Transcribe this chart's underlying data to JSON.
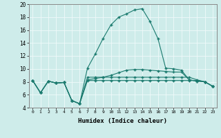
{
  "xlabel": "Humidex (Indice chaleur)",
  "xlim": [
    -0.5,
    23.5
  ],
  "ylim": [
    4,
    20
  ],
  "yticks": [
    4,
    6,
    8,
    10,
    12,
    14,
    16,
    18,
    20
  ],
  "xticks": [
    0,
    1,
    2,
    3,
    4,
    5,
    6,
    7,
    8,
    9,
    10,
    11,
    12,
    13,
    14,
    15,
    16,
    17,
    18,
    19,
    20,
    21,
    22,
    23
  ],
  "background_color": "#ceecea",
  "grid_color": "#f0fafa",
  "line_color": "#1a7a6e",
  "lines": [
    {
      "x": [
        0,
        1,
        2,
        3,
        4,
        5,
        6,
        7,
        8,
        9,
        10,
        11,
        12,
        13,
        14,
        15,
        16,
        17,
        18,
        19,
        20,
        21,
        22,
        23
      ],
      "y": [
        8.2,
        6.3,
        8.1,
        7.8,
        7.9,
        5.1,
        4.6,
        10.1,
        12.3,
        14.7,
        16.8,
        18.0,
        18.5,
        19.1,
        19.3,
        17.3,
        14.7,
        10.1,
        10.0,
        9.8,
        8.3,
        8.1,
        8.0,
        7.3
      ]
    },
    {
      "x": [
        0,
        1,
        2,
        3,
        4,
        5,
        6,
        7,
        8,
        9,
        10,
        11,
        12,
        13,
        14,
        15,
        16,
        17,
        18,
        19,
        20,
        21,
        22,
        23
      ],
      "y": [
        8.2,
        6.3,
        8.1,
        7.8,
        7.9,
        5.1,
        4.6,
        8.3,
        8.5,
        8.7,
        9.0,
        9.4,
        9.8,
        9.9,
        9.9,
        9.8,
        9.7,
        9.6,
        9.5,
        9.5,
        8.3,
        8.1,
        8.0,
        7.3
      ]
    },
    {
      "x": [
        0,
        1,
        2,
        3,
        4,
        5,
        6,
        7,
        8,
        9,
        10,
        11,
        12,
        13,
        14,
        15,
        16,
        17,
        18,
        19,
        20,
        21,
        22,
        23
      ],
      "y": [
        8.2,
        6.3,
        8.1,
        7.8,
        7.9,
        5.1,
        4.6,
        8.7,
        8.7,
        8.7,
        8.7,
        8.7,
        8.7,
        8.7,
        8.7,
        8.7,
        8.7,
        8.7,
        8.7,
        8.7,
        8.7,
        8.3,
        8.0,
        7.3
      ]
    },
    {
      "x": [
        0,
        1,
        2,
        3,
        4,
        5,
        6,
        7,
        8,
        9,
        10,
        11,
        12,
        13,
        14,
        15,
        16,
        17,
        18,
        19,
        20,
        21,
        22,
        23
      ],
      "y": [
        8.2,
        6.3,
        8.1,
        7.8,
        7.9,
        5.1,
        4.6,
        8.2,
        8.2,
        8.2,
        8.2,
        8.2,
        8.2,
        8.2,
        8.2,
        8.2,
        8.2,
        8.2,
        8.2,
        8.2,
        8.2,
        8.2,
        8.0,
        7.3
      ]
    }
  ]
}
